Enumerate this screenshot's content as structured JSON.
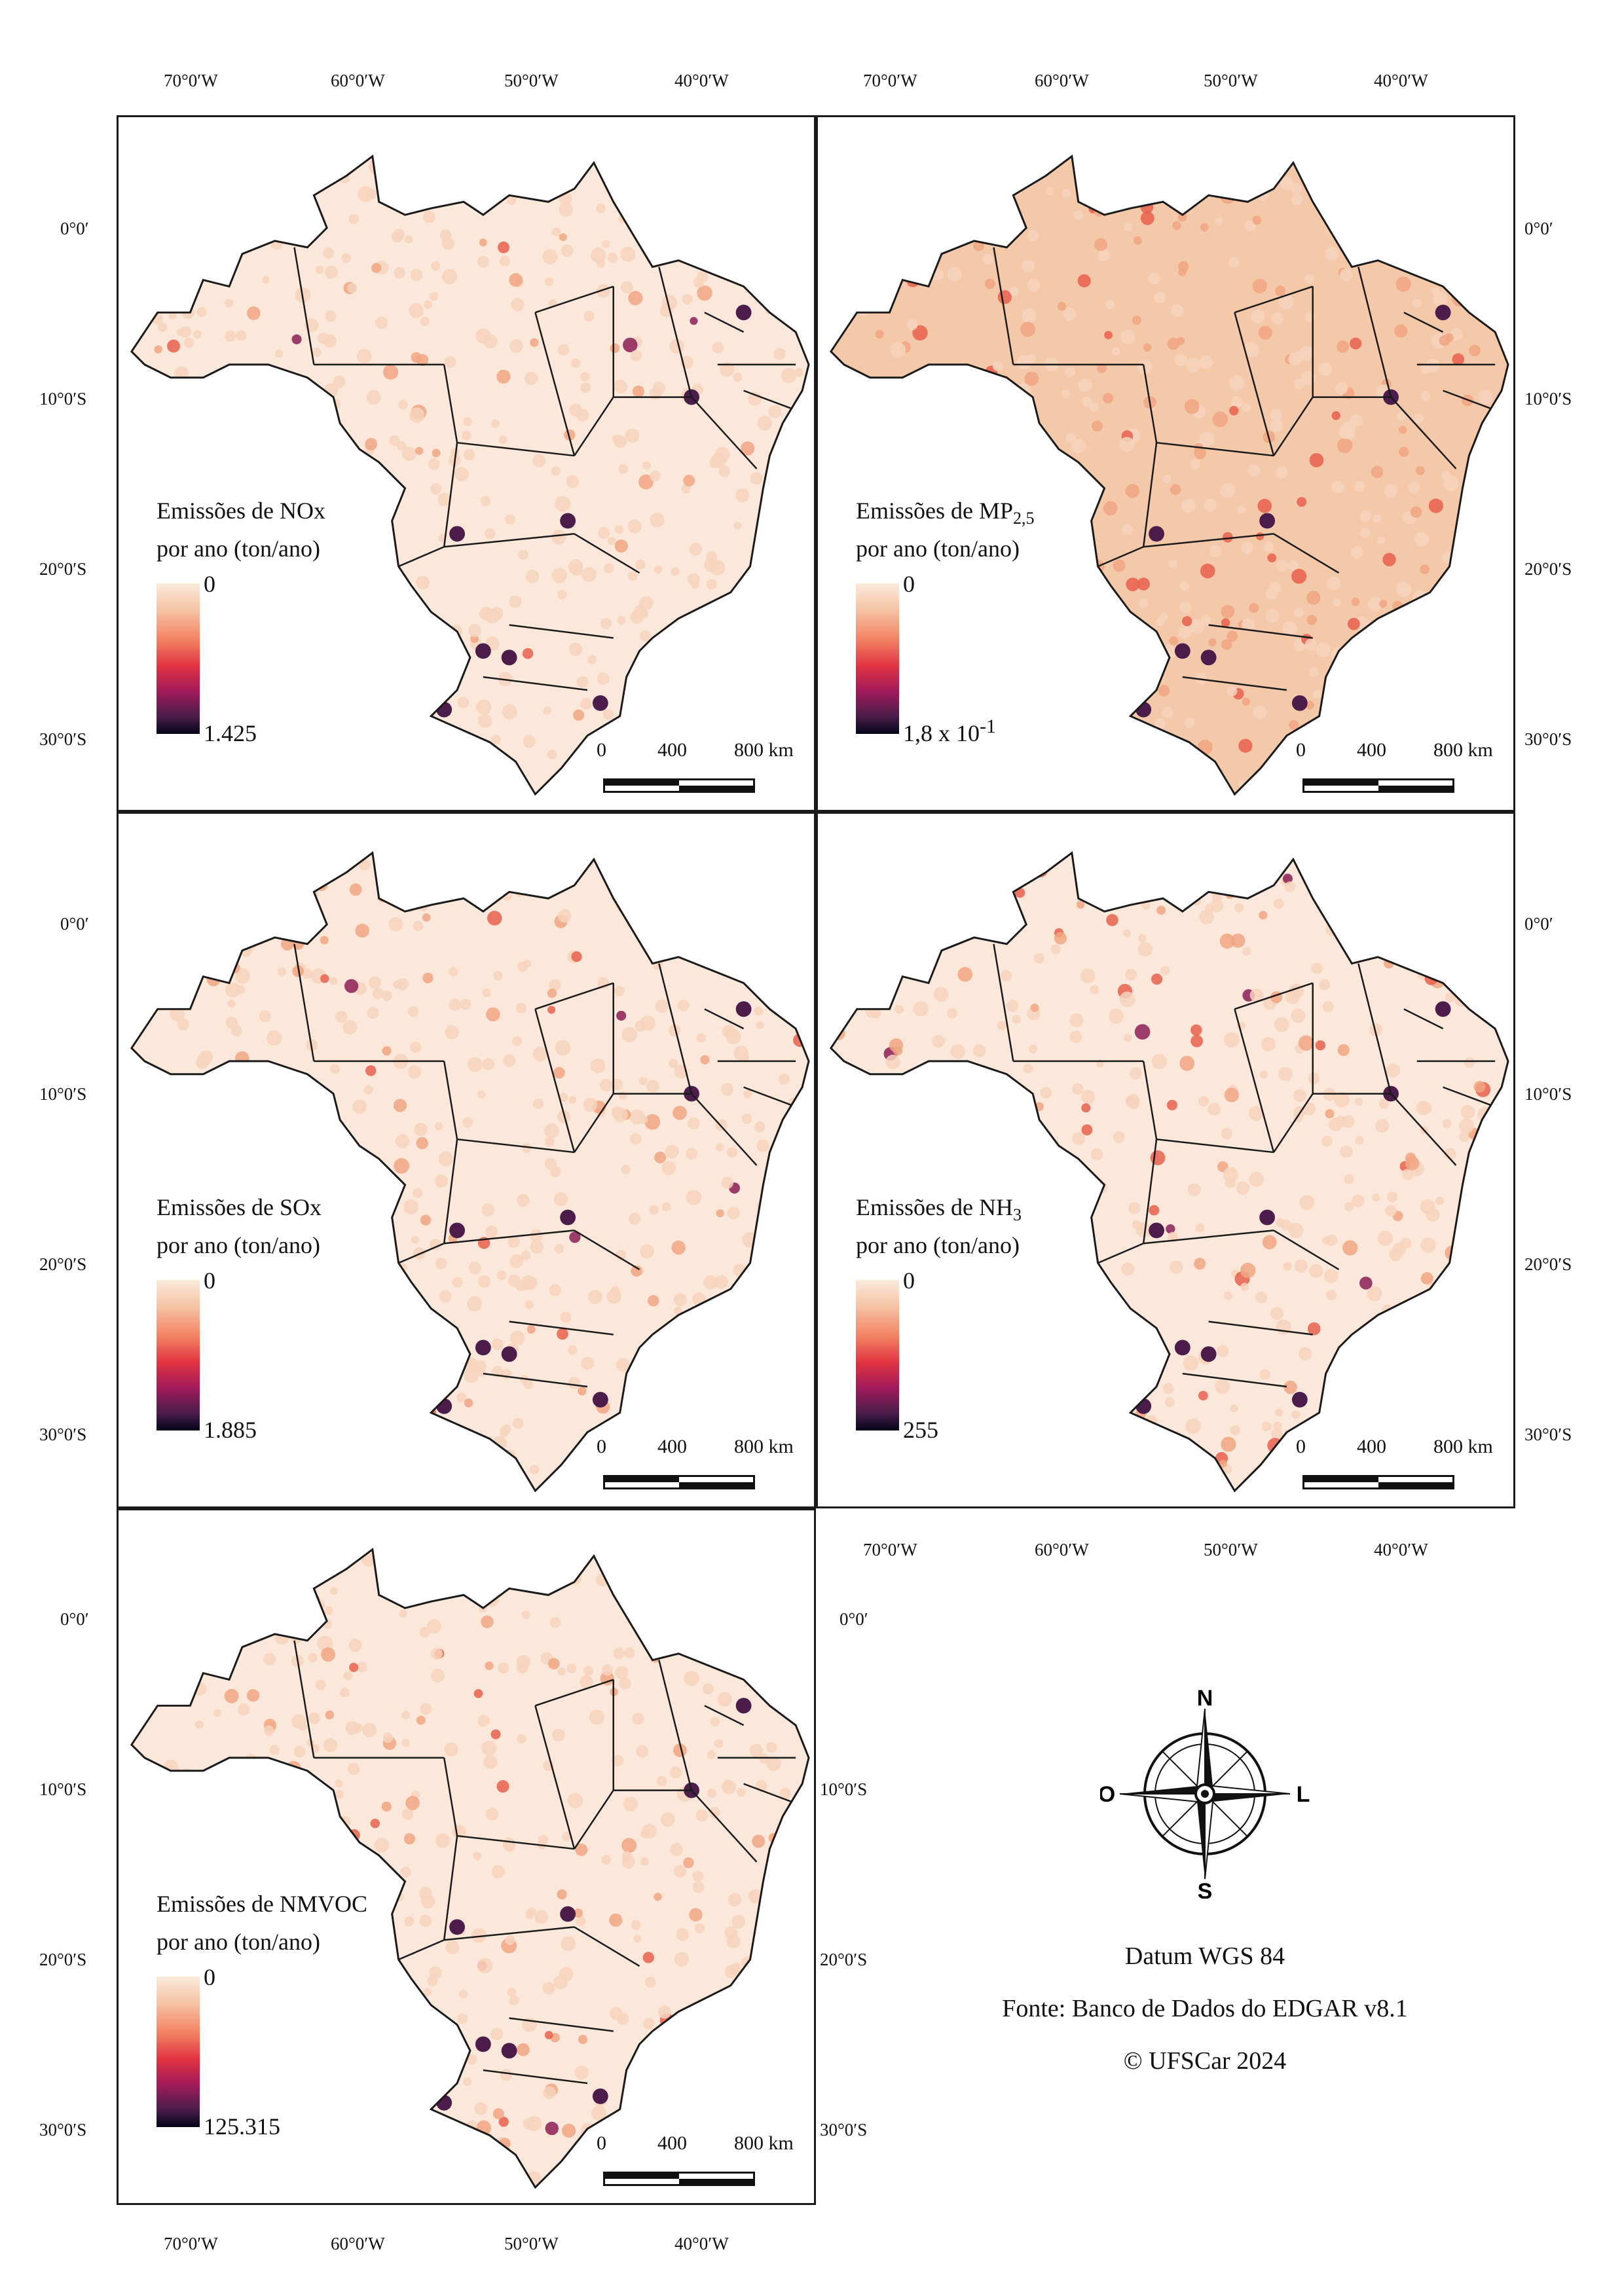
{
  "axes": {
    "lon_labels": [
      "70°0′W",
      "60°0′W",
      "50°0′W",
      "40°0′W"
    ],
    "lat_labels": [
      "0°0′",
      "10°0′S",
      "20°0′S",
      "30°0′S"
    ]
  },
  "panels": [
    {
      "id": "nox",
      "title_line1": "Emissões de NOx",
      "title_line2": "por ano (ton/ano)",
      "title_sub": "",
      "scale_min": "0",
      "scale_max": "1.425",
      "scale_max_sup": "",
      "intensity": 0.35
    },
    {
      "id": "mp25",
      "title_line1": "Emissões de MP",
      "title_line2": "por ano (ton/ano)",
      "title_sub": "2,5",
      "scale_min": "0",
      "scale_max": "1,8 x 10",
      "scale_max_sup": "-1",
      "intensity": 0.85
    },
    {
      "id": "sox",
      "title_line1": "Emissões de SOx",
      "title_line2": "por ano (ton/ano)",
      "title_sub": "",
      "scale_min": "0",
      "scale_max": "1.885",
      "scale_max_sup": "",
      "intensity": 0.45
    },
    {
      "id": "nh3",
      "title_line1": "Emissões de NH",
      "title_line2": "por ano (ton/ano)",
      "title_sub": "3",
      "scale_min": "0",
      "scale_max": "255",
      "scale_max_sup": "",
      "intensity": 0.5
    },
    {
      "id": "nmvoc",
      "title_line1": "Emissões de NMVOC",
      "title_line2": "por ano (ton/ano)",
      "title_sub": "",
      "scale_min": "0",
      "scale_max": "125.315",
      "scale_max_sup": "",
      "intensity": 0.4
    }
  ],
  "scalebar": {
    "labels": [
      "0",
      "400",
      "800 km"
    ]
  },
  "compass": {
    "north": "N",
    "south": "S",
    "east": "L",
    "west": "O"
  },
  "info": {
    "datum": "Datum WGS 84",
    "source": "Fonte: Banco de Dados do EDGAR v8.1",
    "copyright": "© UFSCar 2024"
  },
  "colors": {
    "low": "#faebdd",
    "mid": "#e13342",
    "high": "#03051a",
    "border": "#1a1a1a"
  }
}
